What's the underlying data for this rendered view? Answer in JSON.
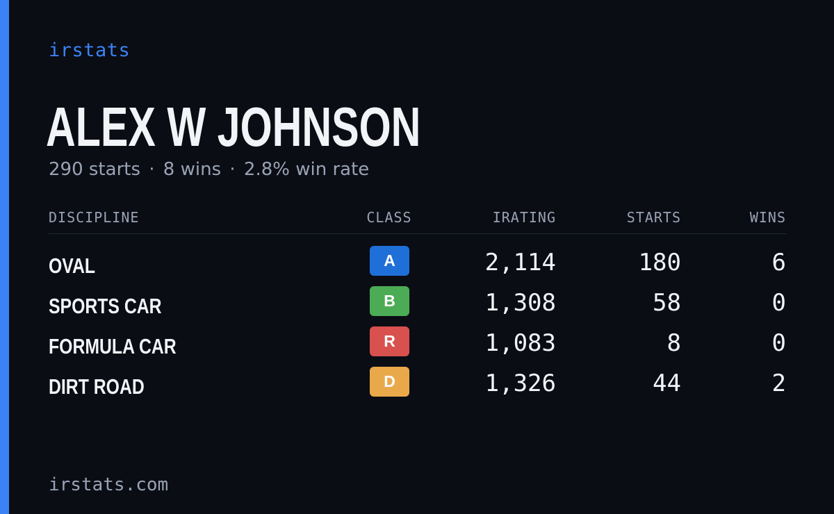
{
  "brand": {
    "label": "irstats"
  },
  "driver": {
    "name": "ALEX W JOHNSON",
    "starts_text": "290 starts",
    "wins_text": "8 wins",
    "win_rate_text": "2.8% win rate",
    "separator": "·"
  },
  "table": {
    "headers": {
      "discipline": "DISCIPLINE",
      "class": "CLASS",
      "irating": "IRATING",
      "starts": "STARTS",
      "wins": "WINS"
    },
    "rows": [
      {
        "discipline": "OVAL",
        "class": "A",
        "class_color": "#1f6fd8",
        "irating": "2,114",
        "starts": "180",
        "wins": "6"
      },
      {
        "discipline": "SPORTS CAR",
        "class": "B",
        "class_color": "#4cab55",
        "irating": "1,308",
        "starts": "58",
        "wins": "0"
      },
      {
        "discipline": "FORMULA CAR",
        "class": "R",
        "class_color": "#d9514e",
        "irating": "1,083",
        "starts": "8",
        "wins": "0"
      },
      {
        "discipline": "DIRT ROAD",
        "class": "D",
        "class_color": "#e9a94a",
        "irating": "1,326",
        "starts": "44",
        "wins": "2"
      }
    ]
  },
  "footer": {
    "url": "irstats.com"
  },
  "colors": {
    "accent": "#3b82f6",
    "background": "#0a0d14",
    "muted_text": "#9aa3b5",
    "primary_text": "#f3f4f8"
  }
}
